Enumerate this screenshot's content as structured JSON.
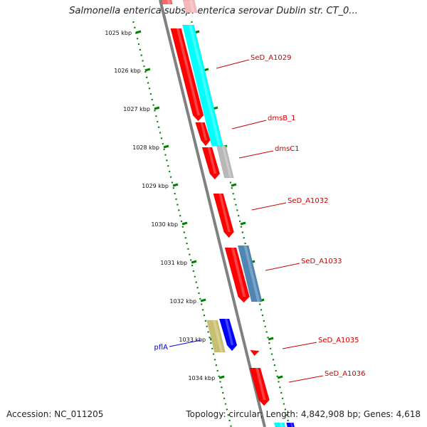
{
  "title": "Salmonella enterica subsp. enterica serovar Dublin str. CT_0...",
  "footer": {
    "accession_label": "Accession:",
    "accession": "NC_011205",
    "topology_text": "Topology: circular; Length: 4,842,908 bp; Genes: 4,618"
  },
  "colors": {
    "cds_forward": "#ff0000",
    "cds_reverse": "#ff0000",
    "cyan_track": "#00ffff",
    "gray_track": "#b8b8b8",
    "steelblue_track": "#4f86b4",
    "olive_track": "#c8bf70",
    "blue_gene": "#0000ff",
    "ruler": "#008000",
    "backbone": "#808080",
    "label_red": "#cc0000",
    "label_blue": "#0000cc"
  },
  "ruler": {
    "unit": "kbp",
    "ticks": [
      {
        "label": "1025 kbp"
      },
      {
        "label": "1026 kbp"
      },
      {
        "label": "1027 kbp"
      },
      {
        "label": "1028 kbp"
      },
      {
        "label": "1029 kbp"
      },
      {
        "label": "1030 kbp"
      },
      {
        "label": "1031 kbp"
      },
      {
        "label": "1032 kbp"
      },
      {
        "label": "1033 kbp"
      },
      {
        "label": "1034 kbp"
      }
    ]
  },
  "genes": [
    {
      "name": "SeD_A1029",
      "color": "red"
    },
    {
      "name": "dmsB_1",
      "color": "red"
    },
    {
      "name": "dmsC1",
      "color": "red"
    },
    {
      "name": "SeD_A1032",
      "color": "red"
    },
    {
      "name": "SeD_A1033",
      "color": "red"
    },
    {
      "name": "pflA",
      "color": "blue"
    },
    {
      "name": "SeD_A1035",
      "color": "red"
    },
    {
      "name": "SeD_A1036",
      "color": "red"
    }
  ]
}
